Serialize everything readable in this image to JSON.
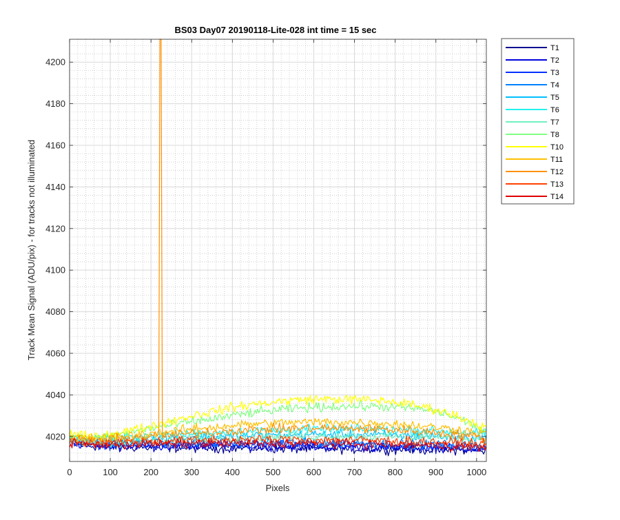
{
  "chart_data": {
    "type": "line",
    "title": "BS03 Day07 20190118-Lite-028 int time = 15 sec",
    "xlabel": "Pixels",
    "ylabel": "Track Mean Signal (ADU/pix) - for tracks not illuminated",
    "xlim": [
      0,
      1024
    ],
    "ylim": [
      4008,
      4211
    ],
    "x_ticks": [
      0,
      100,
      200,
      300,
      400,
      500,
      600,
      700,
      800,
      900,
      1000
    ],
    "y_ticks": [
      4020,
      4040,
      4060,
      4080,
      4100,
      4120,
      4140,
      4160,
      4180,
      4200
    ],
    "grid": true,
    "minor_grid": true,
    "legend_position": "outside-top-right",
    "x": [
      0,
      50,
      100,
      150,
      200,
      250,
      300,
      350,
      400,
      450,
      500,
      550,
      600,
      650,
      700,
      750,
      800,
      850,
      900,
      950,
      1000,
      1024
    ],
    "series": [
      {
        "name": "T1",
        "color": "#00008f",
        "values": [
          4016.5,
          4015.5,
          4015,
          4014.8,
          4014.8,
          4014.6,
          4014.5,
          4014.5,
          4014.4,
          4014.3,
          4014.2,
          4014.2,
          4014.1,
          4014,
          4014,
          4013.9,
          4013.8,
          4013.7,
          4013.6,
          4013.5,
          4013.3,
          4013.2
        ]
      },
      {
        "name": "T2",
        "color": "#0000df",
        "values": [
          4017,
          4016,
          4015.5,
          4015.4,
          4015.3,
          4015.3,
          4015.2,
          4015.2,
          4015.1,
          4015,
          4015,
          4015,
          4014.9,
          4014.8,
          4014.8,
          4014.7,
          4014.6,
          4014.5,
          4014.4,
          4014.3,
          4014.2,
          4014
        ]
      },
      {
        "name": "T3",
        "color": "#0030ff",
        "values": [
          4017.5,
          4016.5,
          4016,
          4016,
          4016,
          4016,
          4016,
          4016,
          4016,
          4016,
          4016,
          4016,
          4016,
          4016,
          4016,
          4015.8,
          4015.6,
          4015.5,
          4015.4,
          4015.2,
          4015,
          4014.8
        ]
      },
      {
        "name": "T4",
        "color": "#0080ff",
        "values": [
          4018,
          4017,
          4016.5,
          4016.6,
          4016.8,
          4016.9,
          4017,
          4017,
          4017.1,
          4017.2,
          4017.2,
          4017.2,
          4017.1,
          4017,
          4017,
          4016.8,
          4016.6,
          4016.4,
          4016.2,
          4016,
          4015.8,
          4015.5
        ]
      },
      {
        "name": "T5",
        "color": "#00c0ff",
        "values": [
          4019,
          4018,
          4018,
          4018.5,
          4019,
          4019.3,
          4019.6,
          4019.9,
          4020.2,
          4020.4,
          4020.6,
          4020.8,
          4021,
          4021,
          4021,
          4020.8,
          4020.6,
          4020.3,
          4020,
          4019.6,
          4019,
          4018.5
        ]
      },
      {
        "name": "T6",
        "color": "#20f0f0",
        "values": [
          4020,
          4019,
          4019.2,
          4019.8,
          4020.4,
          4021,
          4021.4,
          4021.8,
          4022.2,
          4022.6,
          4022.9,
          4023.2,
          4023.4,
          4023.5,
          4023.5,
          4023.4,
          4023.2,
          4023,
          4022.7,
          4022.3,
          4021.8,
          4021.3
        ]
      },
      {
        "name": "T7",
        "color": "#70f0c0",
        "values": [
          4018,
          4017,
          4017,
          4017.4,
          4017.8,
          4018.2,
          4018.6,
          4019,
          4019.3,
          4019.6,
          4019.8,
          4020,
          4020.1,
          4020.2,
          4020.2,
          4020.1,
          4020,
          4019.8,
          4019.6,
          4019.3,
          4019,
          4018.5
        ]
      },
      {
        "name": "T8",
        "color": "#80ff80",
        "values": [
          4020,
          4019,
          4020,
          4022,
          4024,
          4025.5,
          4027,
          4028.5,
          4030,
          4031.5,
          4032.5,
          4033.5,
          4034,
          4034.5,
          4034.5,
          4034.5,
          4034,
          4033.5,
          4032,
          4029,
          4025,
          4022.5
        ]
      },
      {
        "name": "T10",
        "color": "#ffff00",
        "values": [
          4021,
          4020,
          4021,
          4023,
          4025,
          4027.5,
          4030,
          4032,
          4034,
          4035.5,
          4036.5,
          4037.5,
          4038,
          4038,
          4037.8,
          4037.5,
          4036.5,
          4035,
          4033,
          4030,
          4026,
          4024
        ]
      },
      {
        "name": "T11",
        "color": "#ffc000",
        "values": [
          4020,
          4019,
          4019.5,
          4020.5,
          4021.5,
          4022.5,
          4023.5,
          4024.5,
          4025.3,
          4026,
          4026.4,
          4026.8,
          4027,
          4027,
          4026.8,
          4026.5,
          4026,
          4025.3,
          4024.5,
          4023.5,
          4022,
          4021
        ]
      },
      {
        "name": "T12",
        "color": "#ff9000",
        "values": [
          4019,
          4018,
          4018.5,
          4019.3,
          4020,
          4020.8,
          4021.5,
          4022.2,
          4022.8,
          4023.2,
          4023.6,
          4023.9,
          4024,
          4024,
          4023.9,
          4023.6,
          4023.2,
          4022.6,
          4022,
          4021,
          4020,
          4019
        ]
      },
      {
        "name": "T13",
        "color": "#ff4000",
        "values": [
          4018,
          4017,
          4017.2,
          4017.5,
          4017.8,
          4018,
          4018.2,
          4018.3,
          4018.4,
          4018.5,
          4018.5,
          4018.5,
          4018.5,
          4018.4,
          4018.3,
          4018.1,
          4017.9,
          4017.6,
          4017.3,
          4017,
          4016.6,
          4016.2
        ]
      },
      {
        "name": "T14",
        "color": "#e00000",
        "values": [
          4017,
          4016,
          4016,
          4016.2,
          4016.4,
          4016.5,
          4016.6,
          4016.7,
          4016.7,
          4016.7,
          4016.7,
          4016.7,
          4016.6,
          4016.5,
          4016.4,
          4016.2,
          4016,
          4015.8,
          4015.6,
          4015.3,
          4015,
          4014.7
        ]
      }
    ],
    "spike": {
      "series": "T12",
      "x": 224,
      "y_max": 4211
    }
  }
}
